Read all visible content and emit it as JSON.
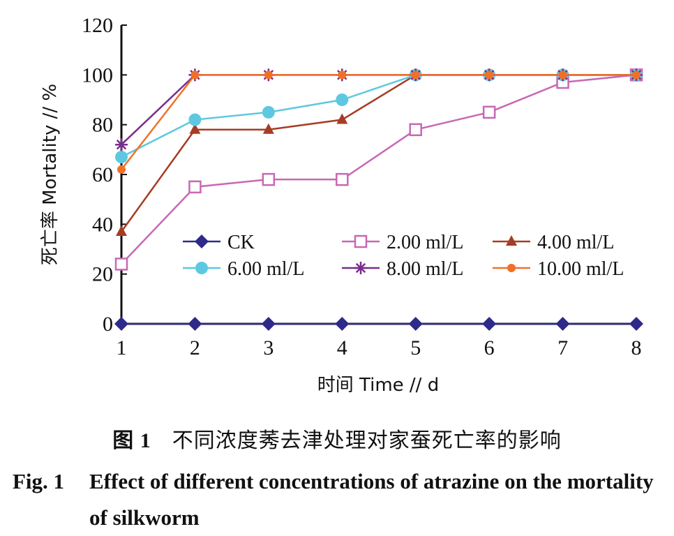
{
  "chart_data": {
    "type": "line",
    "x": [
      1,
      2,
      3,
      4,
      5,
      6,
      7,
      8
    ],
    "ylim": [
      0,
      120
    ],
    "xlim": [
      1,
      8
    ],
    "yticks": [
      0,
      20,
      40,
      60,
      80,
      100,
      120
    ],
    "xticks": [
      1,
      2,
      3,
      4,
      5,
      6,
      7,
      8
    ],
    "xlabel": "时间 Time // d",
    "ylabel": "死亡率 Mortality // %",
    "grid": false,
    "legend_position": "center-left, inside plot",
    "series": [
      {
        "name": "CK",
        "color": "#2e2a8a",
        "marker": "diamond",
        "values": [
          0,
          0,
          0,
          0,
          0,
          0,
          0,
          0
        ]
      },
      {
        "name": "2.00 ml/L",
        "color": "#c868b4",
        "marker": "open-square",
        "values": [
          24,
          55,
          58,
          58,
          78,
          85,
          97,
          100
        ]
      },
      {
        "name": "4.00 ml/L",
        "color": "#a63c24",
        "marker": "triangle",
        "values": [
          37,
          78,
          78,
          82,
          100,
          100,
          100,
          100
        ]
      },
      {
        "name": "6.00 ml/L",
        "color": "#5ec8e0",
        "marker": "circle",
        "values": [
          67,
          82,
          85,
          90,
          100,
          100,
          100,
          100
        ]
      },
      {
        "name": "8.00 ml/L",
        "color": "#7a2e8a",
        "marker": "star",
        "values": [
          72,
          100,
          100,
          100,
          100,
          100,
          100,
          100
        ]
      },
      {
        "name": "10.00 ml/L",
        "color": "#f07028",
        "marker": "small-circle",
        "values": [
          62,
          100,
          100,
          100,
          100,
          100,
          100,
          100
        ]
      }
    ]
  },
  "caption": {
    "zh_fig": "图 1",
    "zh_text": "不同浓度莠去津处理对家蚕死亡率的影响",
    "en_fig": "Fig. 1",
    "en_text": "Effect of different concentrations of atrazine on the mortality of silkworm"
  }
}
